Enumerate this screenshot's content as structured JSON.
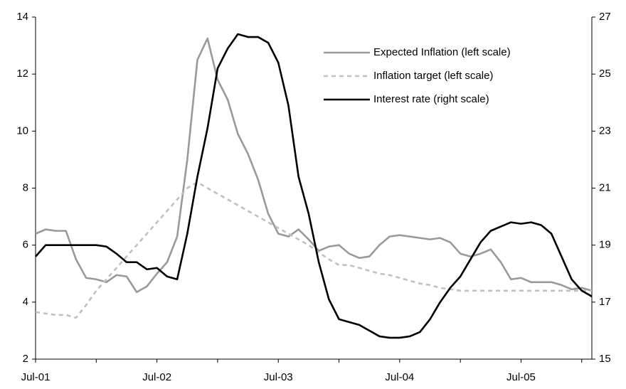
{
  "chart_data": {
    "type": "line",
    "categories": [
      "Jul-01",
      null,
      null,
      null,
      null,
      null,
      null,
      null,
      null,
      null,
      null,
      null,
      "Jul-02",
      null,
      null,
      null,
      null,
      null,
      null,
      null,
      null,
      null,
      null,
      null,
      "Jul-03",
      null,
      null,
      null,
      null,
      null,
      null,
      null,
      null,
      null,
      null,
      null,
      "Jul-04",
      null,
      null,
      null,
      null,
      null,
      null,
      null,
      null,
      null,
      null,
      null,
      "Jul-05",
      null,
      null,
      null,
      null,
      null,
      null,
      null
    ],
    "series": [
      {
        "name": "Expected Inflation (left scale)",
        "color": "#999999",
        "style": "solid",
        "values": [
          6.4,
          6.55,
          6.5,
          6.5,
          5.5,
          4.85,
          4.8,
          4.7,
          4.95,
          4.9,
          4.35,
          4.55,
          5.0,
          5.4,
          6.3,
          9.0,
          12.5,
          13.25,
          11.8,
          11.1,
          9.9,
          9.2,
          8.3,
          7.1,
          6.4,
          6.3,
          6.55,
          6.2,
          5.8,
          5.95,
          6.0,
          5.7,
          5.55,
          5.6,
          6.0,
          6.3,
          6.35,
          6.3,
          6.25,
          6.2,
          6.25,
          6.1,
          5.7,
          5.6,
          5.7,
          5.85,
          5.4,
          4.8,
          4.85,
          4.7,
          4.7,
          4.7,
          4.6,
          4.45,
          4.5,
          4.4
        ]
      },
      {
        "name": "Inflation target  (left scale)",
        "color": "#c0c0c0",
        "style": "dashed",
        "values": [
          3.65,
          3.6,
          3.55,
          3.55,
          3.45,
          3.9,
          4.4,
          4.8,
          5.2,
          5.6,
          6.0,
          6.4,
          6.8,
          7.2,
          7.6,
          8.0,
          8.2,
          8.0,
          7.8,
          7.6,
          7.4,
          7.2,
          7.0,
          6.8,
          6.6,
          6.4,
          6.2,
          6.0,
          5.75,
          5.5,
          5.3,
          5.3,
          5.2,
          5.1,
          5.0,
          4.95,
          4.85,
          4.75,
          4.65,
          4.6,
          4.5,
          4.45,
          4.4,
          4.4,
          4.4,
          4.4,
          4.4,
          4.4,
          4.4,
          4.4,
          4.4,
          4.4,
          4.4,
          4.4,
          4.4,
          4.4
        ]
      },
      {
        "name": "Interest rate (right scale)",
        "color": "#000000",
        "style": "solid",
        "axis": "y2",
        "values": [
          18.6,
          19.0,
          19.0,
          19.0,
          19.0,
          19.0,
          19.0,
          18.95,
          18.7,
          18.4,
          18.4,
          18.15,
          18.2,
          17.9,
          17.8,
          19.4,
          21.4,
          23.1,
          25.2,
          25.9,
          26.4,
          26.3,
          26.3,
          26.1,
          25.4,
          23.9,
          21.4,
          20.1,
          18.4,
          17.1,
          16.4,
          16.3,
          16.2,
          16.0,
          15.8,
          15.75,
          15.75,
          15.8,
          15.95,
          16.4,
          17.0,
          17.5,
          17.9,
          18.5,
          19.1,
          19.5,
          19.65,
          19.8,
          19.75,
          19.8,
          19.7,
          19.4,
          18.6,
          17.8,
          17.4,
          17.2
        ]
      }
    ],
    "ylim": [
      2,
      14
    ],
    "yticks": [
      2,
      4,
      6,
      8,
      10,
      12,
      14
    ],
    "y2lim": [
      15,
      27
    ],
    "y2ticks": [
      15,
      17,
      19,
      21,
      23,
      25,
      27
    ],
    "grid": false,
    "legend": "upper right"
  }
}
